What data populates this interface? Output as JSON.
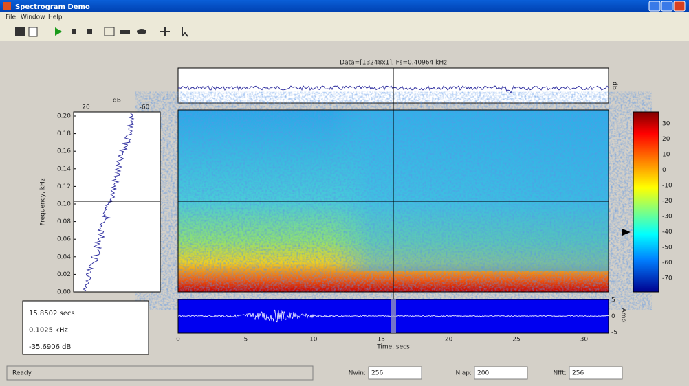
{
  "window": {
    "title": "Spectrogram Demo"
  },
  "menu": [
    "File",
    "Window",
    "Help"
  ],
  "plot": {
    "title": "Data=[13248x1], Fs=0.40964 kHz",
    "top_label": "dB"
  },
  "spectrum": {
    "xlabel": "dB",
    "xticks": [
      "20",
      "-60"
    ],
    "ylabel": "Frequency, kHz",
    "yticks": [
      "0.20",
      "0.18",
      "0.16",
      "0.14",
      "0.12",
      "0.10",
      "0.08",
      "0.06",
      "0.04",
      "0.02",
      "0.00"
    ]
  },
  "readout": [
    "15.8502 secs",
    "0.1025 kHz",
    "-35.6906 dB"
  ],
  "colorbar": {
    "ticks": [
      "30",
      "20",
      "10",
      "0",
      "-10",
      "-20",
      "-30",
      "-40",
      "-50",
      "-60",
      "-70"
    ]
  },
  "signal": {
    "ylabel": "Ampl",
    "yticks": [
      "5",
      "0",
      "-5"
    ],
    "xticks": [
      "0",
      "5",
      "10",
      "15",
      "20",
      "25",
      "30"
    ],
    "xlabel": "Time, secs"
  },
  "status": {
    "text": "Ready",
    "fields": [
      {
        "label": "Nwin:",
        "value": "256"
      },
      {
        "label": "Nlap:",
        "value": "200"
      },
      {
        "label": "Nfft:",
        "value": "256"
      }
    ]
  }
}
